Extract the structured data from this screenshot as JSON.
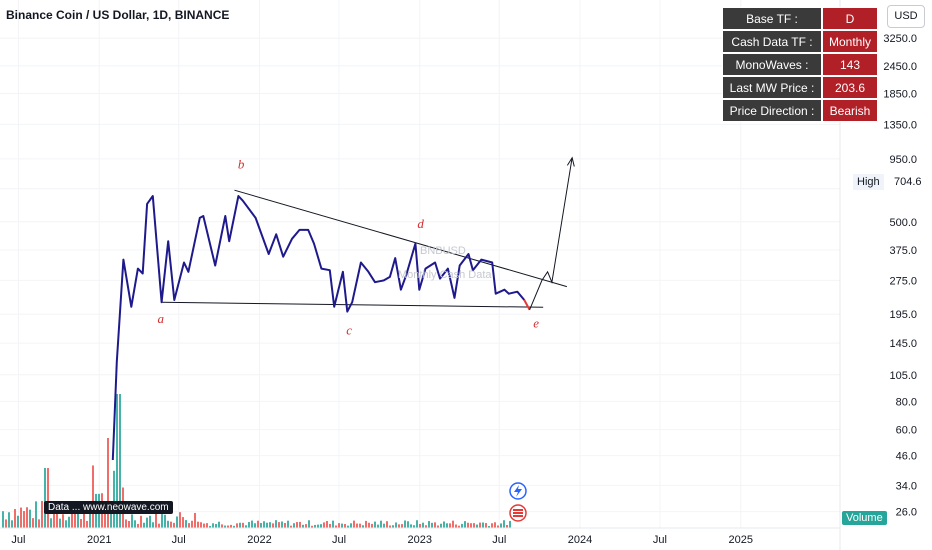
{
  "header": {
    "title": "Binance Coin / US Dollar, 1D, BINANCE"
  },
  "toolbar": {
    "currency": "USD"
  },
  "info_table": [
    {
      "key": "Base TF :",
      "value": "D"
    },
    {
      "key": "Cash Data TF :",
      "value": "Monthly"
    },
    {
      "key": "MonoWaves :",
      "value": "143"
    },
    {
      "key": "Last MW Price :",
      "value": "203.6"
    },
    {
      "key": "Price Direction :",
      "value": "Bearish"
    }
  ],
  "price_labels": {
    "high_label": "High",
    "high_value": "704.6"
  },
  "volume_label": "Volume",
  "publisher_label": "Data ... www.neowave.com",
  "watermark": [
    "BNBUSD",
    "Monthly Cash Data"
  ],
  "colors": {
    "wave_line": "#1f1a8c",
    "last_wave": "#e53935",
    "labels": "#d32f2f",
    "table_key_bg": "#3a3a3a",
    "table_value_bg": "#b11f27",
    "vol_up": "#26a69a",
    "vol_down": "#ef5350"
  },
  "chart_data": {
    "type": "line",
    "y_scale": "log",
    "ylim": [
      22,
      4800
    ],
    "y_ticks": [
      3250,
      2450,
      1850,
      1350,
      950,
      700,
      500,
      375,
      275,
      195,
      145,
      105,
      80,
      60,
      46,
      34,
      26
    ],
    "y_tick_labels": [
      "3250.0",
      "2450.0",
      "1850.0",
      "1350.0",
      "950.0",
      "",
      "500.0",
      "375.0",
      "275.0",
      "195.0",
      "145.0",
      "105.0",
      "80.0",
      "60.0",
      "46.0",
      "34.0",
      "26.0"
    ],
    "xlim": [
      "2020-05-20",
      "2025-08-15"
    ],
    "x_ticks": [
      {
        "date": "2020-07-01",
        "label": "Jul"
      },
      {
        "date": "2021-01-01",
        "label": "2021"
      },
      {
        "date": "2021-07-01",
        "label": "Jul"
      },
      {
        "date": "2022-01-01",
        "label": "2022"
      },
      {
        "date": "2022-07-01",
        "label": "Jul"
      },
      {
        "date": "2023-01-01",
        "label": "2023"
      },
      {
        "date": "2023-07-01",
        "label": "Jul"
      },
      {
        "date": "2024-01-01",
        "label": "2024"
      },
      {
        "date": "2024-07-01",
        "label": "Jul"
      },
      {
        "date": "2025-01-01",
        "label": "2025"
      }
    ],
    "wave_series": {
      "name": "",
      "points": [
        [
          "2021-02-01",
          44
        ],
        [
          "2021-02-10",
          120
        ],
        [
          "2021-02-25",
          340
        ],
        [
          "2021-03-15",
          210
        ],
        [
          "2021-03-30",
          310
        ],
        [
          "2021-04-10",
          295
        ],
        [
          "2021-04-20",
          600
        ],
        [
          "2021-05-03",
          650
        ],
        [
          "2021-05-23",
          220
        ],
        [
          "2021-06-07",
          410
        ],
        [
          "2021-06-21",
          225
        ],
        [
          "2021-07-13",
          330
        ],
        [
          "2021-07-23",
          300
        ],
        [
          "2021-08-18",
          520
        ],
        [
          "2021-08-26",
          530
        ],
        [
          "2021-09-22",
          320
        ],
        [
          "2021-10-15",
          530
        ],
        [
          "2021-10-24",
          410
        ],
        [
          "2021-11-14",
          650
        ],
        [
          "2021-11-24",
          620
        ],
        [
          "2021-12-23",
          520
        ],
        [
          "2022-01-22",
          360
        ],
        [
          "2022-02-08",
          440
        ],
        [
          "2022-02-24",
          350
        ],
        [
          "2022-03-16",
          420
        ],
        [
          "2022-04-02",
          460
        ],
        [
          "2022-04-22",
          460
        ],
        [
          "2022-05-05",
          400
        ],
        [
          "2022-05-22",
          310
        ],
        [
          "2022-06-10",
          305
        ],
        [
          "2022-06-20",
          210
        ],
        [
          "2022-07-10",
          300
        ],
        [
          "2022-07-20",
          200
        ],
        [
          "2022-07-31",
          220
        ],
        [
          "2022-08-20",
          330
        ],
        [
          "2022-09-06",
          300
        ],
        [
          "2022-09-21",
          270
        ],
        [
          "2022-10-11",
          275
        ],
        [
          "2022-10-25",
          285
        ],
        [
          "2022-11-06",
          345
        ],
        [
          "2022-11-19",
          250
        ],
        [
          "2022-12-01",
          290
        ],
        [
          "2022-12-22",
          400
        ],
        [
          "2022-12-31",
          250
        ],
        [
          "2023-01-14",
          310
        ],
        [
          "2023-02-05",
          330
        ],
        [
          "2023-02-16",
          280
        ],
        [
          "2023-03-06",
          310
        ],
        [
          "2023-03-21",
          230
        ],
        [
          "2023-04-02",
          320
        ],
        [
          "2023-04-22",
          360
        ],
        [
          "2023-05-02",
          305
        ],
        [
          "2023-05-21",
          340
        ],
        [
          "2023-06-15",
          330
        ],
        [
          "2023-06-23",
          240
        ],
        [
          "2023-07-13",
          250
        ],
        [
          "2023-07-23",
          240
        ],
        [
          "2023-08-11",
          245
        ],
        [
          "2023-08-27",
          225
        ]
      ]
    },
    "last_wave": {
      "points": [
        [
          "2023-08-27",
          225
        ],
        [
          "2023-09-08",
          203.6
        ]
      ]
    },
    "projection": {
      "points": [
        [
          "2023-09-08",
          203.6
        ],
        [
          "2023-10-06",
          275
        ],
        [
          "2023-10-19",
          300
        ],
        [
          "2023-10-29",
          270
        ],
        [
          "2023-12-14",
          960
        ]
      ]
    },
    "trendlines": [
      {
        "points": [
          [
            "2021-05-23",
            220
          ],
          [
            "2023-10-09",
            209
          ]
        ]
      },
      {
        "points": [
          [
            "2021-11-05",
            690
          ],
          [
            "2023-12-02",
            258
          ]
        ]
      }
    ],
    "wave_labels": [
      {
        "text": "a",
        "date": "2021-05-21",
        "price": 178
      },
      {
        "text": "b",
        "date": "2021-11-20",
        "price": 860
      },
      {
        "text": "c",
        "date": "2022-07-24",
        "price": 158
      },
      {
        "text": "d",
        "date": "2023-01-03",
        "price": 470
      },
      {
        "text": "e",
        "date": "2023-09-23",
        "price": 170
      }
    ],
    "volume": {
      "name": "Volume",
      "series_note_hidden": true
    }
  }
}
